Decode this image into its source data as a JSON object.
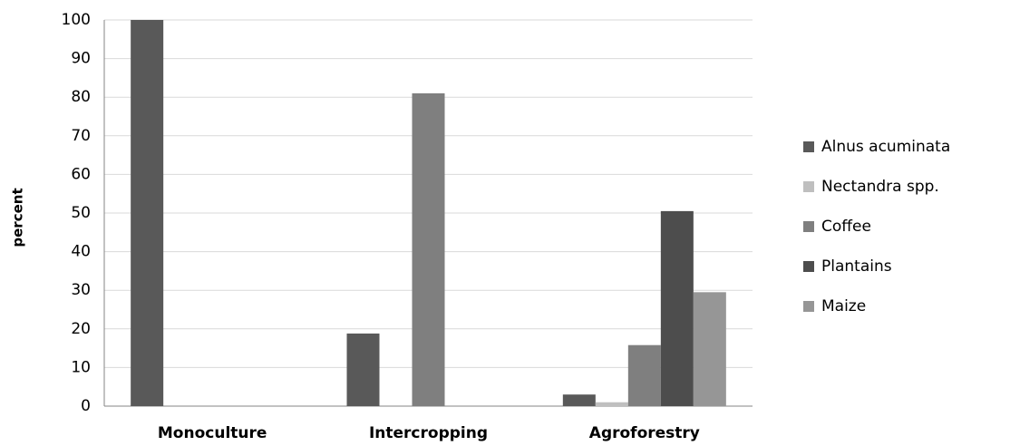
{
  "chart_data": {
    "type": "bar",
    "y_label": "percent",
    "categories": [
      "Monoculture",
      "Intercropping",
      "Agroforestry"
    ],
    "series": [
      {
        "name": "Alnus acuminata",
        "color": "#595959",
        "values": [
          100,
          18.8,
          3
        ]
      },
      {
        "name": "Nectandra spp.",
        "color": "#bfbfbf",
        "values": [
          0,
          0,
          1
        ]
      },
      {
        "name": "Coffee",
        "color": "#7f7f7f",
        "values": [
          0,
          81,
          15.8
        ]
      },
      {
        "name": "Plantains",
        "color": "#4d4d4d",
        "values": [
          0,
          0,
          50.5
        ]
      },
      {
        "name": "Maize",
        "color": "#969696",
        "values": [
          0,
          0,
          29.5
        ]
      }
    ],
    "ylim": [
      0,
      100
    ],
    "yticks": [
      0,
      10,
      20,
      30,
      40,
      50,
      60,
      70,
      80,
      90,
      100
    ],
    "grid": true,
    "legend": "right"
  }
}
